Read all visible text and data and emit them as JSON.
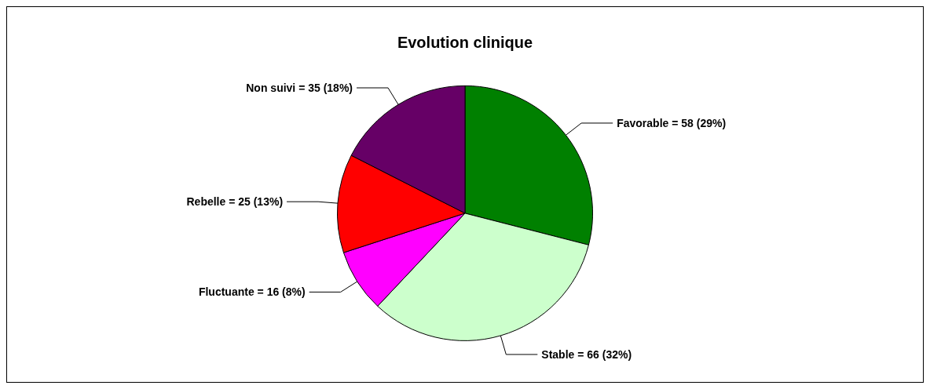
{
  "chart_data": {
    "type": "pie",
    "title": "Evolution clinique",
    "categories": [
      "Favorable = 58 (29%)",
      "Stable = 66 (32%)",
      "Fluctuante = 16 (8%)",
      "Rebelle = 25 (13%)",
      "Non suivi = 35 (18%)"
    ],
    "values": [
      58,
      66,
      16,
      25,
      35
    ],
    "colors": [
      "#008000",
      "#ccffcc",
      "#ff00ff",
      "#ff0000",
      "#660066"
    ]
  }
}
